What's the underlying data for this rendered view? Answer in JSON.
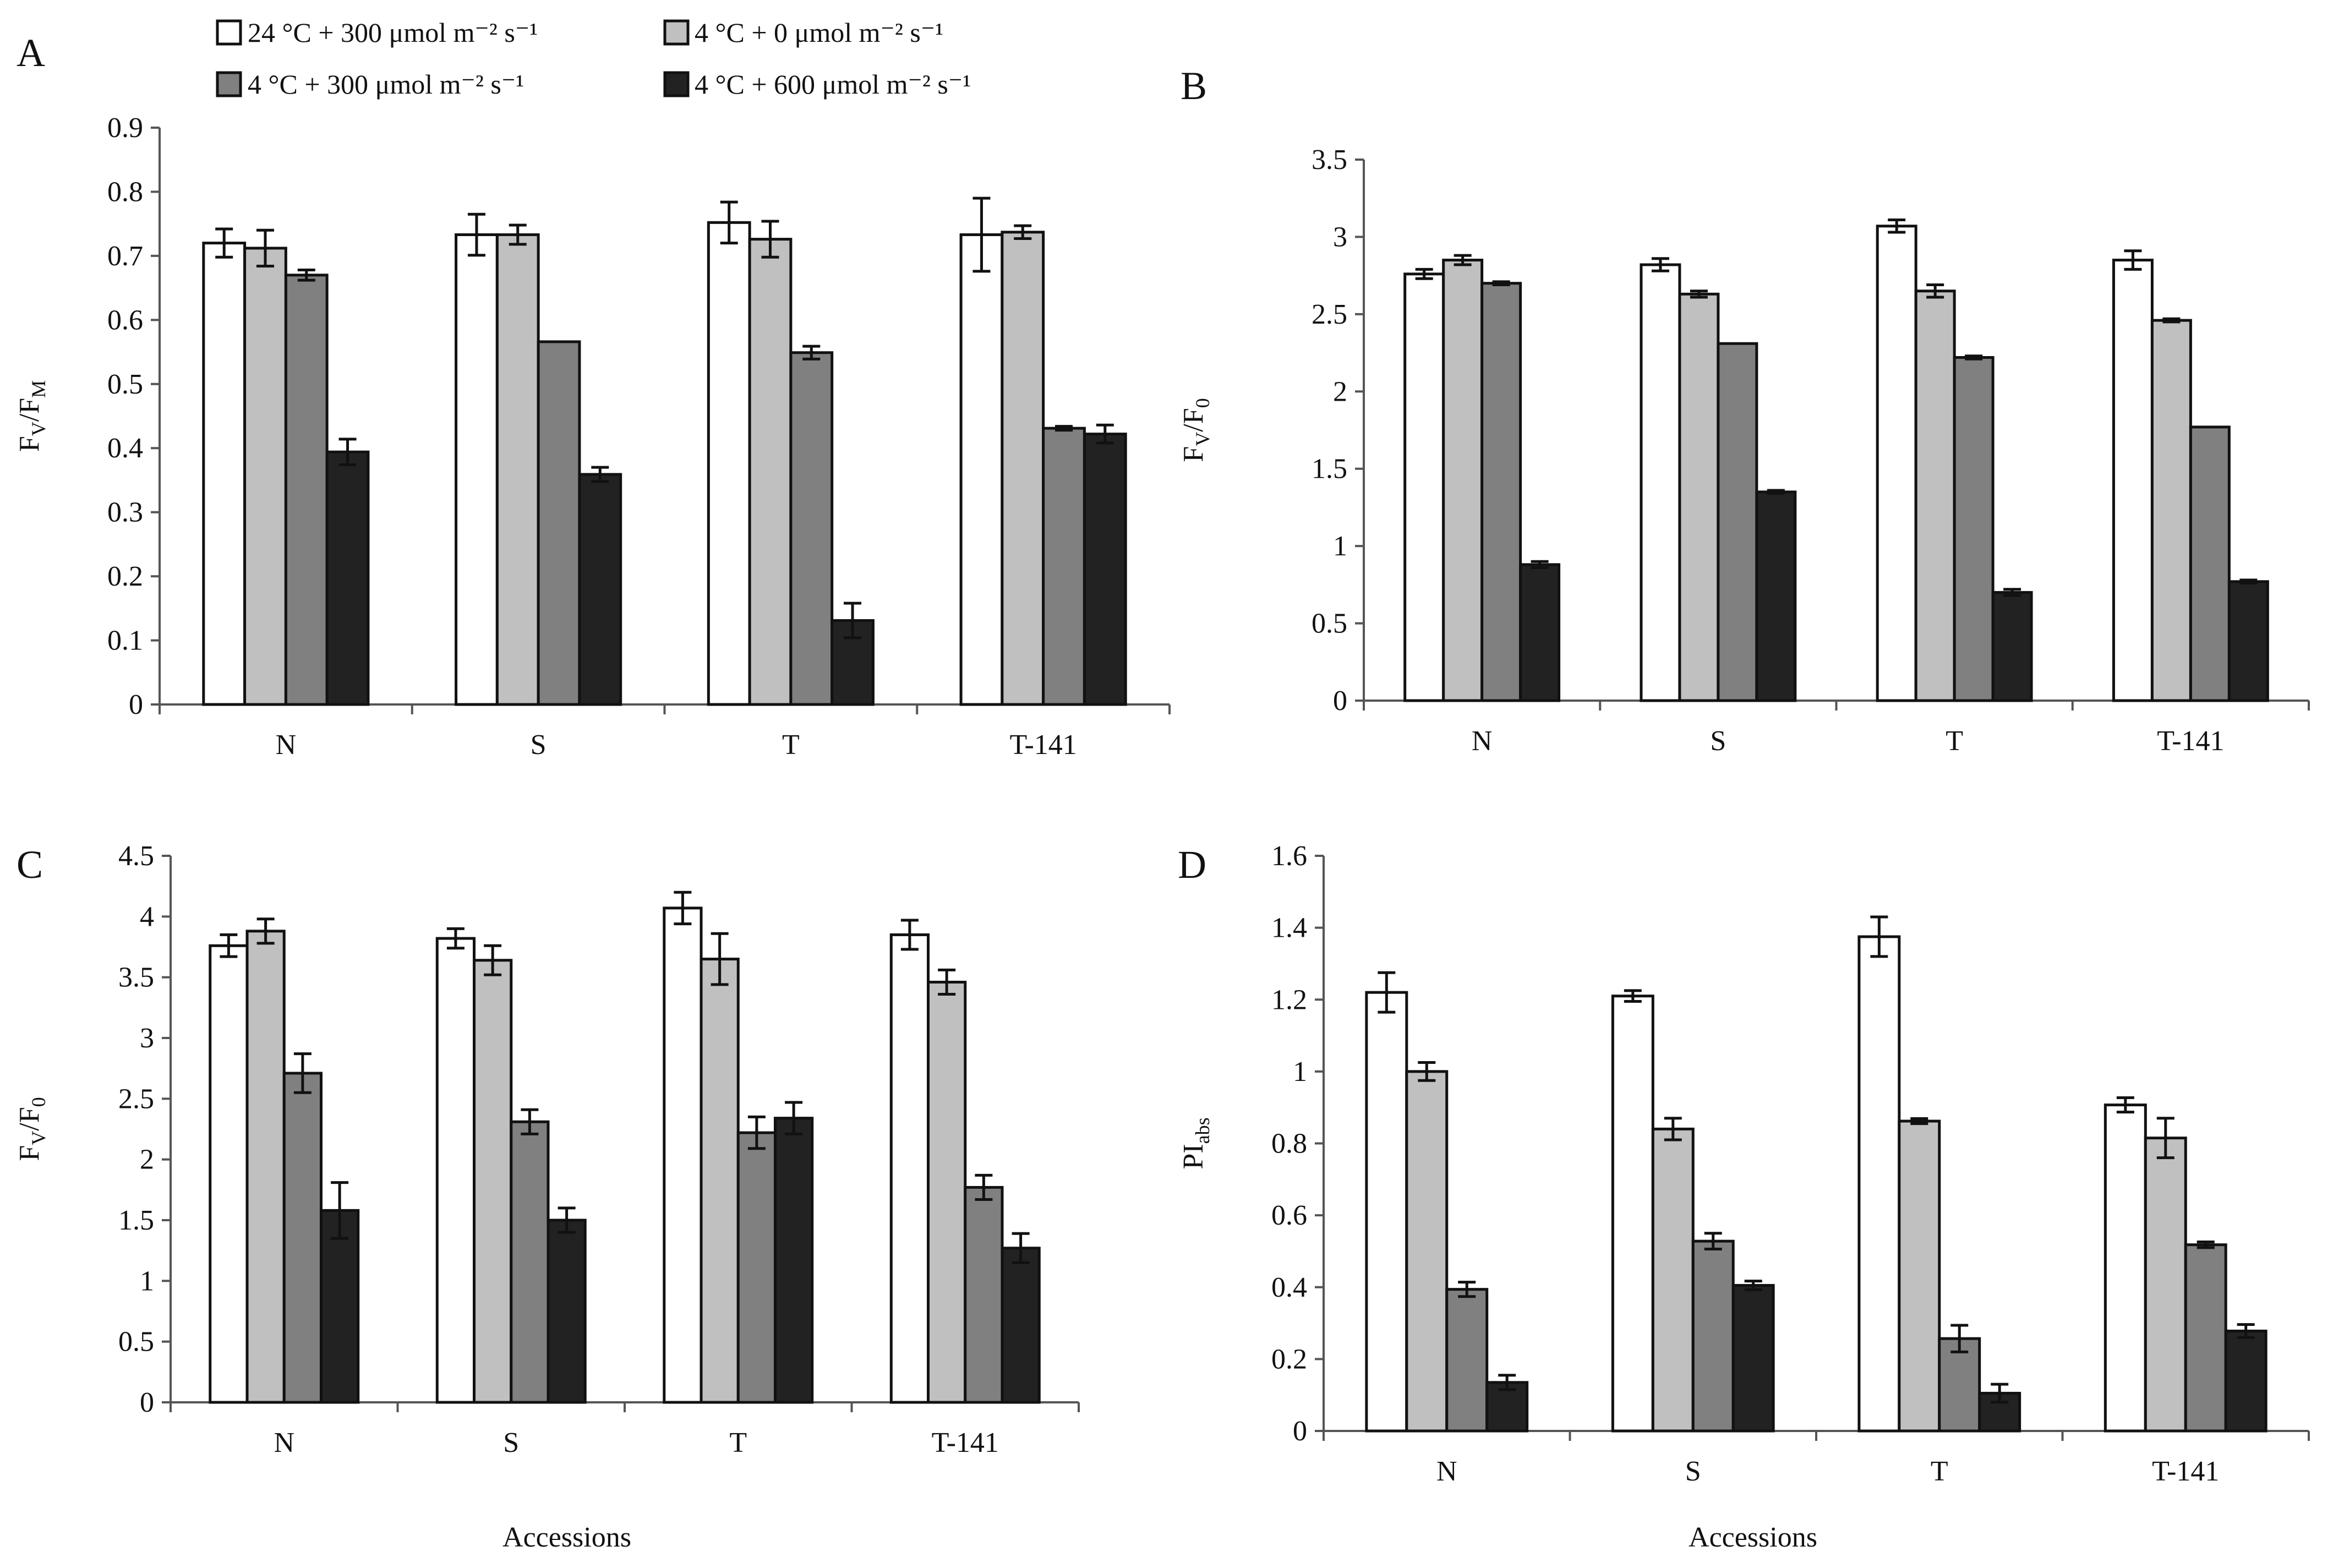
{
  "legend": {
    "items": [
      {
        "label": "24 °C + 300 μmol m⁻² s⁻¹",
        "color": "#ffffff"
      },
      {
        "label": "4 °C + 0 μmol m⁻² s⁻¹",
        "color": "#c0c0c0"
      },
      {
        "label": "4 °C + 300 μmol m⁻² s⁻¹",
        "color": "#808080"
      },
      {
        "label": "4 °C + 600 μmol m⁻² s⁻¹",
        "color": "#222222"
      }
    ]
  },
  "footer": {
    "xlabel_left": "Accessions",
    "xlabel_right": "Accessions"
  },
  "chart_data": [
    {
      "panel": "A",
      "type": "bar",
      "ylabel": "F",
      "ylabel_sub": "V",
      "ylabel_mid": "/F",
      "ylabel_sub2": "M",
      "ylim": [
        0,
        0.9
      ],
      "yticks": [
        "0",
        "0.1",
        "0.2",
        "0.3",
        "0.4",
        "0.5",
        "0.6",
        "0.7",
        "0.8",
        "0.9"
      ],
      "categories": [
        "N",
        "S",
        "T",
        "T-141"
      ],
      "series": [
        {
          "name": "24 °C + 300 μmol m⁻² s⁻¹",
          "values": [
            0.72,
            0.733,
            0.752,
            0.733
          ],
          "errors": [
            0.022,
            0.032,
            0.032,
            0.057
          ]
        },
        {
          "name": "4 °C + 0 μmol m⁻² s⁻¹",
          "values": [
            0.712,
            0.733,
            0.726,
            0.737
          ],
          "errors": [
            0.028,
            0.015,
            0.028,
            0.01
          ]
        },
        {
          "name": "4 °C + 300 μmol m⁻² s⁻¹",
          "values": [
            0.67,
            0.566,
            0.549,
            0.431
          ],
          "errors": [
            0.008,
            0.0,
            0.01,
            0.003
          ]
        },
        {
          "name": "4 °C + 600 μmol m⁻² s⁻¹",
          "values": [
            0.394,
            0.359,
            0.131,
            0.422
          ],
          "errors": [
            0.02,
            0.011,
            0.027,
            0.014
          ]
        }
      ]
    },
    {
      "panel": "B",
      "type": "bar",
      "ylabel": "F",
      "ylabel_sub": "V",
      "ylabel_mid": "/F",
      "ylabel_sub2": "0",
      "ylim": [
        0,
        3.5
      ],
      "yticks": [
        "0",
        "0.5",
        "1",
        "1.5",
        "2",
        "2.5",
        "3",
        "3.5"
      ],
      "categories": [
        "N",
        "S",
        "T",
        "T-141"
      ],
      "series": [
        {
          "name": "24 °C + 300 μmol m⁻² s⁻¹",
          "values": [
            2.76,
            2.82,
            3.07,
            2.85
          ],
          "errors": [
            0.03,
            0.04,
            0.04,
            0.06
          ]
        },
        {
          "name": "4 °C + 0 μmol m⁻² s⁻¹",
          "values": [
            2.85,
            2.63,
            2.65,
            2.46
          ],
          "errors": [
            0.03,
            0.02,
            0.04,
            0.01
          ]
        },
        {
          "name": "4 °C + 300 μmol m⁻² s⁻¹",
          "values": [
            2.7,
            2.31,
            2.22,
            1.77
          ],
          "errors": [
            0.01,
            0.0,
            0.01,
            0.0
          ]
        },
        {
          "name": "4 °C + 600 μmol m⁻² s⁻¹",
          "values": [
            0.88,
            1.35,
            0.7,
            0.77
          ],
          "errors": [
            0.02,
            0.01,
            0.02,
            0.01
          ]
        }
      ]
    },
    {
      "panel": "C",
      "type": "bar",
      "ylabel": "F",
      "ylabel_sub": "V",
      "ylabel_mid": "/F",
      "ylabel_sub2": "0",
      "ylim": [
        0,
        4.5
      ],
      "yticks": [
        "0",
        "0.5",
        "1",
        "1.5",
        "2",
        "2.5",
        "3",
        "3.5",
        "4",
        "4.5"
      ],
      "categories": [
        "N",
        "S",
        "T",
        "T-141"
      ],
      "series": [
        {
          "name": "24 °C + 300 μmol m⁻² s⁻¹",
          "values": [
            3.76,
            3.82,
            4.07,
            3.85
          ],
          "errors": [
            0.09,
            0.08,
            0.13,
            0.12
          ]
        },
        {
          "name": "4 °C + 0 μmol m⁻² s⁻¹",
          "values": [
            3.88,
            3.64,
            3.65,
            3.46
          ],
          "errors": [
            0.1,
            0.12,
            0.21,
            0.1
          ]
        },
        {
          "name": "4 °C + 300 μmol m⁻² s⁻¹",
          "values": [
            2.71,
            2.31,
            2.22,
            1.77
          ],
          "errors": [
            0.16,
            0.1,
            0.13,
            0.1
          ]
        },
        {
          "name": "4 °C + 600 μmol m⁻² s⁻¹",
          "values": [
            1.58,
            1.5,
            2.34,
            1.27
          ],
          "errors": [
            0.23,
            0.1,
            0.13,
            0.12
          ]
        }
      ]
    },
    {
      "panel": "D",
      "type": "bar",
      "ylabel": "PI",
      "ylabel_sub": "abs",
      "ylabel_mid": "",
      "ylabel_sub2": "",
      "ylim": [
        0,
        1.6
      ],
      "yticks": [
        "0",
        "0.2",
        "0.4",
        "0.6",
        "0.8",
        "1",
        "1.2",
        "1.4",
        "1.6"
      ],
      "categories": [
        "N",
        "S",
        "T",
        "T-141"
      ],
      "series": [
        {
          "name": "24 °C + 300 μmol m⁻² s⁻¹",
          "values": [
            1.22,
            1.21,
            1.375,
            0.907
          ],
          "errors": [
            0.055,
            0.015,
            0.055,
            0.02
          ]
        },
        {
          "name": "4 °C + 0 μmol m⁻² s⁻¹",
          "values": [
            1.0,
            0.84,
            0.862,
            0.815
          ],
          "errors": [
            0.025,
            0.03,
            0.007,
            0.055
          ]
        },
        {
          "name": "4 °C + 300 μmol m⁻² s⁻¹",
          "values": [
            0.394,
            0.528,
            0.257,
            0.518
          ],
          "errors": [
            0.02,
            0.022,
            0.037,
            0.008
          ]
        },
        {
          "name": "4 °C + 600 μmol m⁻² s⁻¹",
          "values": [
            0.135,
            0.405,
            0.105,
            0.278
          ],
          "errors": [
            0.02,
            0.012,
            0.025,
            0.018
          ]
        }
      ]
    }
  ]
}
